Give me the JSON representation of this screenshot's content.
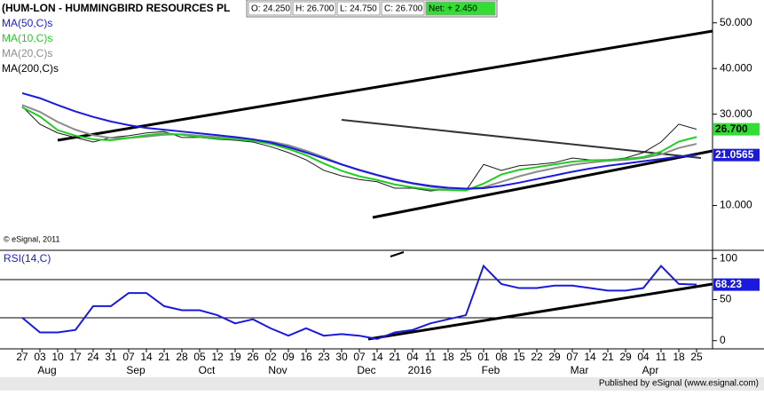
{
  "chart_data": [
    {
      "type": "line",
      "title": "(HUM-LON - HUMMINGBIRD RESOURCES PL",
      "quote": [
        "O: 24.250",
        "H: 26.700",
        "L: 24.750",
        "C: 26.700",
        "Net: + 2.450"
      ],
      "copyright": "© eSignal, 2011",
      "categories": [
        "27",
        "03",
        "10",
        "17",
        "24",
        "31",
        "07",
        "14",
        "21",
        "28",
        "05",
        "12",
        "19",
        "26",
        "02",
        "09",
        "16",
        "23",
        "30",
        "07",
        "14",
        "21",
        "04",
        "11",
        "18",
        "25",
        "01",
        "08",
        "15",
        "22",
        "29",
        "07",
        "14",
        "21",
        "29",
        "04",
        "11",
        "18",
        "25"
      ],
      "month_labels": [
        null,
        "Aug",
        null,
        null,
        null,
        null,
        "Sep",
        null,
        null,
        null,
        "Oct",
        null,
        null,
        null,
        "Nov",
        null,
        null,
        null,
        null,
        "Dec",
        null,
        null,
        "2016",
        null,
        null,
        null,
        "Feb",
        null,
        null,
        null,
        null,
        "Mar",
        null,
        null,
        null,
        "Apr",
        null,
        null,
        null
      ],
      "ylim": [
        0,
        55
      ],
      "yticks": [
        {
          "value": 10,
          "label": "10.000"
        },
        {
          "value": 30,
          "label": "30.000"
        },
        {
          "value": 40,
          "label": "40.000"
        },
        {
          "value": 50,
          "label": "50.000"
        }
      ],
      "series": [
        {
          "name": "MA(50,C)s",
          "color": "#1a1adc",
          "values": [
            34.6,
            33.5,
            32.0,
            30.6,
            29.4,
            28.4,
            27.6,
            27.0,
            26.6,
            26.2,
            25.8,
            25.4,
            25.0,
            24.5,
            23.8,
            22.8,
            21.6,
            20.3,
            19.0,
            17.8,
            16.7,
            15.7,
            14.9,
            14.3,
            13.9,
            13.7,
            13.8,
            14.3,
            15.0,
            15.8,
            16.6,
            17.4,
            18.1,
            18.7,
            19.2,
            19.7,
            20.2,
            20.7,
            21.0565
          ],
          "value_labels": [
            null,
            null,
            null,
            null,
            null,
            null,
            null,
            null,
            null,
            null,
            null,
            null,
            null,
            null,
            null,
            null,
            null,
            null,
            null,
            null,
            null,
            null,
            null,
            null,
            null,
            null,
            null,
            null,
            null,
            null,
            null,
            null,
            null,
            null,
            null,
            null,
            null,
            null,
            "21.0565"
          ]
        },
        {
          "name": "MA(10,C)s",
          "color": "#22cc22",
          "values": [
            31.5,
            29.5,
            26.5,
            25.3,
            24.5,
            24.3,
            24.8,
            25.4,
            25.8,
            25.5,
            25.0,
            24.7,
            24.5,
            24.2,
            23.5,
            22.4,
            21.0,
            19.2,
            17.6,
            16.4,
            15.6,
            14.6,
            14.0,
            13.5,
            13.4,
            13.3,
            14.8,
            16.8,
            17.8,
            18.4,
            19.0,
            19.6,
            19.9,
            20.0,
            20.2,
            20.6,
            21.8,
            24.0,
            25.0
          ]
        },
        {
          "name": "MA(20,C)s",
          "color": "#8c8c8c",
          "values": [
            32.0,
            30.5,
            28.3,
            26.6,
            25.4,
            24.8,
            24.8,
            25.1,
            25.5,
            25.6,
            25.3,
            25.0,
            24.7,
            24.4,
            24.0,
            23.2,
            22.0,
            20.6,
            19.0,
            17.7,
            16.6,
            15.6,
            14.8,
            14.1,
            13.7,
            13.5,
            14.0,
            15.2,
            16.4,
            17.4,
            18.2,
            18.9,
            19.4,
            19.8,
            20.0,
            20.4,
            21.2,
            22.6,
            23.5
          ]
        },
        {
          "name": "MA(200,C)s",
          "color": "#000000",
          "values": [
            null,
            null,
            null,
            null,
            null,
            null,
            null,
            null,
            null,
            null,
            null,
            null,
            null,
            null,
            null,
            null,
            null,
            null,
            null,
            null,
            null,
            null,
            null,
            null,
            null,
            null,
            null,
            null,
            null,
            null,
            null,
            null,
            null,
            null,
            null,
            null,
            null,
            null,
            null
          ]
        }
      ],
      "price": {
        "color": "#1a1a1a",
        "label_color": "#33dd33",
        "values": [
          31.7,
          27.8,
          25.9,
          24.9,
          23.9,
          24.9,
          25.3,
          25.9,
          26.2,
          24.9,
          24.9,
          24.5,
          24.3,
          23.9,
          22.9,
          21.6,
          20.0,
          17.7,
          16.5,
          15.7,
          15.2,
          13.8,
          13.8,
          13.2,
          13.6,
          13.2,
          19.0,
          17.7,
          18.7,
          19.0,
          19.4,
          20.4,
          20.0,
          20.0,
          20.4,
          21.6,
          23.9,
          27.8,
          26.7
        ],
        "value_labels": [
          null,
          null,
          null,
          null,
          null,
          null,
          null,
          null,
          null,
          null,
          null,
          null,
          null,
          null,
          null,
          null,
          null,
          null,
          null,
          null,
          null,
          null,
          null,
          null,
          null,
          null,
          null,
          null,
          null,
          null,
          null,
          null,
          null,
          null,
          null,
          null,
          null,
          null,
          "26.700"
        ]
      }
    },
    {
      "type": "line",
      "title": "RSI(14,C)",
      "ylim": [
        -10,
        110
      ],
      "yticks": [
        0,
        50,
        100
      ],
      "series": [
        {
          "name": "RSI(14,C)",
          "color": "#1a1adc",
          "values": [
            28,
            10,
            10,
            13,
            42,
            42,
            58,
            58,
            42,
            37,
            37,
            31,
            21,
            26,
            15,
            6,
            15,
            6,
            8,
            6,
            2,
            10,
            13,
            21,
            26,
            31,
            91,
            69,
            64,
            64,
            67,
            67,
            64,
            61,
            61,
            64,
            91,
            69,
            68.23
          ]
        }
      ]
    }
  ],
  "footer": "Published by eSignal (www.esignal.com)"
}
